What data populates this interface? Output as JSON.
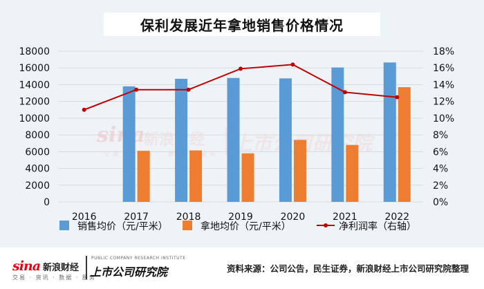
{
  "title": "保利发展近年拿地销售价格情况",
  "chart_data": {
    "type": "bar",
    "categories": [
      "2016",
      "2017",
      "2018",
      "2019",
      "2020",
      "2021",
      "2022"
    ],
    "series": [
      {
        "name": "销售均价（元/平米）",
        "kind": "bar",
        "axis": "left",
        "color": "#5b9bd5",
        "values": [
          null,
          13800,
          14700,
          14800,
          14750,
          16050,
          16650
        ]
      },
      {
        "name": "拿地均价（元/平米）",
        "kind": "bar",
        "axis": "left",
        "color": "#ed7d31",
        "values": [
          null,
          6100,
          6150,
          5800,
          7400,
          6800,
          13700
        ]
      },
      {
        "name": "净利润率（右轴）",
        "kind": "line",
        "axis": "right",
        "color": "#c00000",
        "values": [
          11.0,
          13.4,
          13.4,
          15.9,
          16.4,
          13.1,
          12.5
        ]
      }
    ],
    "y_left": {
      "min": 0,
      "max": 18000,
      "step": 2000,
      "ticks": [
        "0",
        "2000",
        "4000",
        "6000",
        "8000",
        "10000",
        "12000",
        "14000",
        "16000",
        "18000"
      ]
    },
    "y_right": {
      "min": 0,
      "max": 18,
      "step": 2,
      "ticks": [
        "0%",
        "2%",
        "4%",
        "6%",
        "8%",
        "10%",
        "12%",
        "14%",
        "16%",
        "18%"
      ]
    },
    "grid": true,
    "legend": "bottom"
  },
  "logos": {
    "sina_mark": "sina",
    "sina_name": "新浪财经",
    "sina_sub": "交易 · 资讯 · 数据 · 服务",
    "ssyjy_sub": "PUBLIC COMPANY RESEARCH INSTITUTE",
    "ssyjy_main": "上市公司研究院"
  },
  "source": "资料来源：公司公告，民生证券，新浪财经上市公司研究院整理"
}
